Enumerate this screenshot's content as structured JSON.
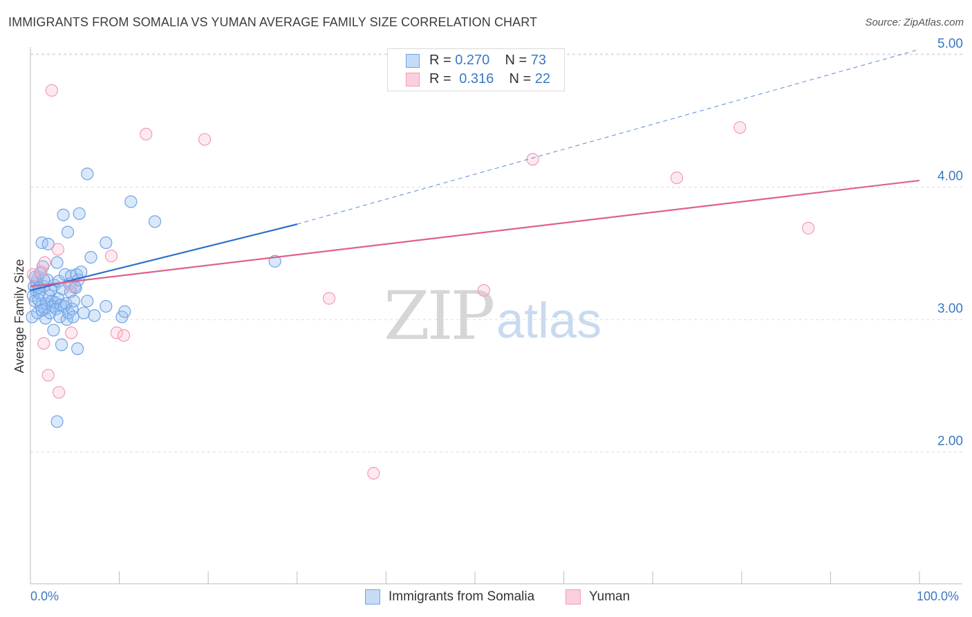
{
  "title": "IMMIGRANTS FROM SOMALIA VS YUMAN AVERAGE FAMILY SIZE CORRELATION CHART",
  "source": "Source: ZipAtlas.com",
  "watermark": {
    "zip": "ZIP",
    "atlas": "atlas"
  },
  "legend_top": [
    {
      "r_label": "R = ",
      "r_value": "0.270",
      "n_label": "N = ",
      "n_value": "73",
      "color": "#6fa3e6"
    },
    {
      "r_label": "R = ",
      "r_value": "0.316",
      "n_label": "N = ",
      "n_value": "22",
      "color": "#f29ab6"
    }
  ],
  "chart_data": {
    "type": "scatter",
    "title": "IMMIGRANTS FROM SOMALIA VS YUMAN AVERAGE FAMILY SIZE CORRELATION CHART",
    "xlabel": "",
    "ylabel": "Average Family Size",
    "xlim": [
      0,
      100
    ],
    "ylim": [
      1.0,
      5.2
    ],
    "x_tick_labels": [
      "0.0%",
      "100.0%"
    ],
    "y_ticks": [
      2.0,
      3.0,
      4.0,
      5.0
    ],
    "y_tick_labels": [
      "2.00",
      "3.00",
      "4.00",
      "5.00"
    ],
    "grid": true,
    "legend_position": "bottom",
    "series": [
      {
        "name": "Immigrants from Somalia",
        "color": "#6fa3e6",
        "line_color": "#2b6fce",
        "trend": {
          "x": [
            0,
            30
          ],
          "y": [
            3.22,
            3.72
          ],
          "dashed_to": [
            100,
            5.04
          ]
        },
        "points": [
          [
            0.2,
            3.02
          ],
          [
            0.3,
            3.18
          ],
          [
            0.4,
            3.25
          ],
          [
            0.5,
            3.14
          ],
          [
            0.6,
            3.22
          ],
          [
            0.7,
            3.28
          ],
          [
            0.8,
            3.31
          ],
          [
            0.8,
            3.05
          ],
          [
            0.9,
            3.15
          ],
          [
            1.0,
            3.2
          ],
          [
            1.1,
            3.35
          ],
          [
            1.2,
            3.1
          ],
          [
            1.3,
            3.58
          ],
          [
            1.4,
            3.4
          ],
          [
            1.5,
            3.25
          ],
          [
            1.6,
            3.08
          ],
          [
            1.7,
            3.01
          ],
          [
            1.8,
            3.12
          ],
          [
            1.9,
            3.3
          ],
          [
            2.0,
            3.57
          ],
          [
            2.1,
            3.18
          ],
          [
            2.2,
            3.05
          ],
          [
            2.3,
            3.22
          ],
          [
            2.4,
            3.14
          ],
          [
            2.5,
            3.1
          ],
          [
            2.6,
            2.92
          ],
          [
            2.7,
            3.26
          ],
          [
            2.8,
            3.13
          ],
          [
            2.9,
            3.08
          ],
          [
            3.0,
            3.43
          ],
          [
            3.1,
            3.16
          ],
          [
            3.2,
            3.29
          ],
          [
            3.3,
            3.02
          ],
          [
            3.4,
            3.11
          ],
          [
            3.5,
            2.81
          ],
          [
            3.6,
            3.23
          ],
          [
            3.7,
            3.79
          ],
          [
            3.8,
            3.1
          ],
          [
            3.9,
            3.34
          ],
          [
            4.0,
            3.12
          ],
          [
            4.1,
            3.0
          ],
          [
            4.2,
            3.66
          ],
          [
            4.3,
            3.05
          ],
          [
            4.4,
            3.27
          ],
          [
            4.5,
            3.21
          ],
          [
            4.6,
            3.33
          ],
          [
            4.7,
            3.08
          ],
          [
            4.8,
            3.02
          ],
          [
            4.9,
            3.14
          ],
          [
            5.0,
            3.25
          ],
          [
            5.1,
            3.24
          ],
          [
            5.2,
            3.34
          ],
          [
            5.3,
            2.78
          ],
          [
            5.4,
            3.3
          ],
          [
            5.5,
            3.8
          ],
          [
            5.7,
            3.36
          ],
          [
            6.0,
            3.05
          ],
          [
            6.4,
            3.14
          ],
          [
            6.8,
            3.47
          ],
          [
            7.2,
            3.03
          ],
          [
            3.0,
            2.23
          ],
          [
            0.5,
            3.32
          ],
          [
            1.5,
            3.3
          ],
          [
            0.9,
            3.24
          ],
          [
            6.4,
            4.1
          ],
          [
            8.5,
            3.58
          ],
          [
            11.3,
            3.89
          ],
          [
            14.0,
            3.74
          ],
          [
            8.5,
            3.1
          ],
          [
            10.3,
            3.02
          ],
          [
            10.6,
            3.06
          ],
          [
            27.5,
            3.44
          ],
          [
            1.3,
            3.07
          ]
        ]
      },
      {
        "name": "Yuman",
        "color": "#f29ab6",
        "line_color": "#e0608a",
        "trend": {
          "x": [
            0,
            100
          ],
          "y": [
            3.25,
            4.05
          ]
        },
        "points": [
          [
            0.3,
            3.34
          ],
          [
            1.2,
            3.36
          ],
          [
            1.5,
            2.82
          ],
          [
            1.6,
            3.43
          ],
          [
            2.0,
            2.58
          ],
          [
            2.4,
            4.73
          ],
          [
            3.1,
            3.53
          ],
          [
            3.2,
            2.45
          ],
          [
            4.6,
            3.25
          ],
          [
            4.6,
            2.9
          ],
          [
            9.1,
            3.48
          ],
          [
            9.7,
            2.9
          ],
          [
            10.5,
            2.88
          ],
          [
            13.0,
            4.4
          ],
          [
            19.6,
            4.36
          ],
          [
            33.6,
            3.16
          ],
          [
            38.6,
            1.84
          ],
          [
            51.0,
            3.22
          ],
          [
            56.5,
            4.21
          ],
          [
            72.7,
            4.07
          ],
          [
            79.8,
            4.45
          ],
          [
            87.5,
            3.69
          ]
        ]
      }
    ]
  }
}
